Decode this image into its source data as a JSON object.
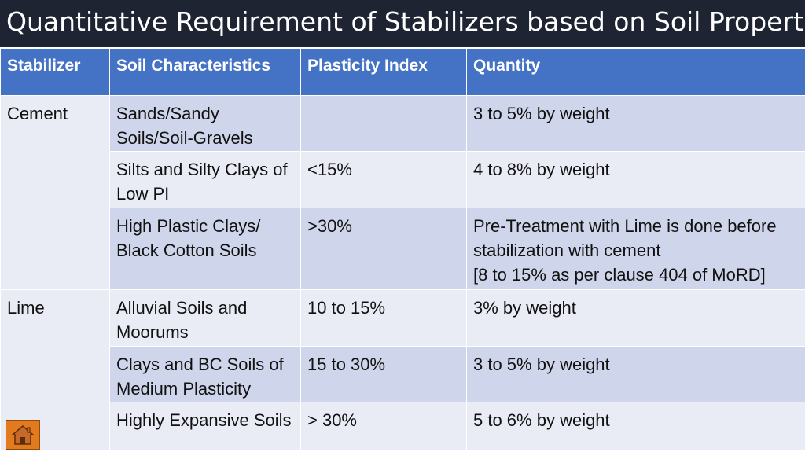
{
  "title": "Quantitative Requirement of Stabilizers based on Soil Properties",
  "table": {
    "headers": [
      "Stabilizer",
      "Soil Characteristics",
      "Plasticity Index",
      "Quantity"
    ],
    "groups": [
      {
        "stabilizer": "Cement",
        "rows": [
          {
            "soil": "Sands/Sandy Soils/Soil-Gravels",
            "pi": "",
            "quantity": "3 to 5% by weight"
          },
          {
            "soil": "Silts and Silty Clays of Low PI",
            "pi": "<15%",
            "quantity": "4 to 8% by weight"
          },
          {
            "soil": "High Plastic Clays/ Black Cotton Soils",
            "pi": ">30%",
            "quantity": "Pre-Treatment with Lime is done before stabilization with cement",
            "quantity_note": "[8 to 15% as per clause 404 of MoRD]"
          }
        ]
      },
      {
        "stabilizer": "Lime",
        "rows": [
          {
            "soil": "Alluvial Soils and Moorums",
            "pi": "10 to 15%",
            "quantity": "3% by weight"
          },
          {
            "soil": "Clays and BC Soils of Medium Plasticity",
            "pi": "15 to 30%",
            "quantity": "3 to 5% by weight"
          },
          {
            "soil": "Highly Expansive Soils",
            "pi": "> 30%",
            "quantity": "5 to 6% by weight"
          }
        ]
      }
    ]
  },
  "home_button": {
    "icon": "home-icon"
  }
}
